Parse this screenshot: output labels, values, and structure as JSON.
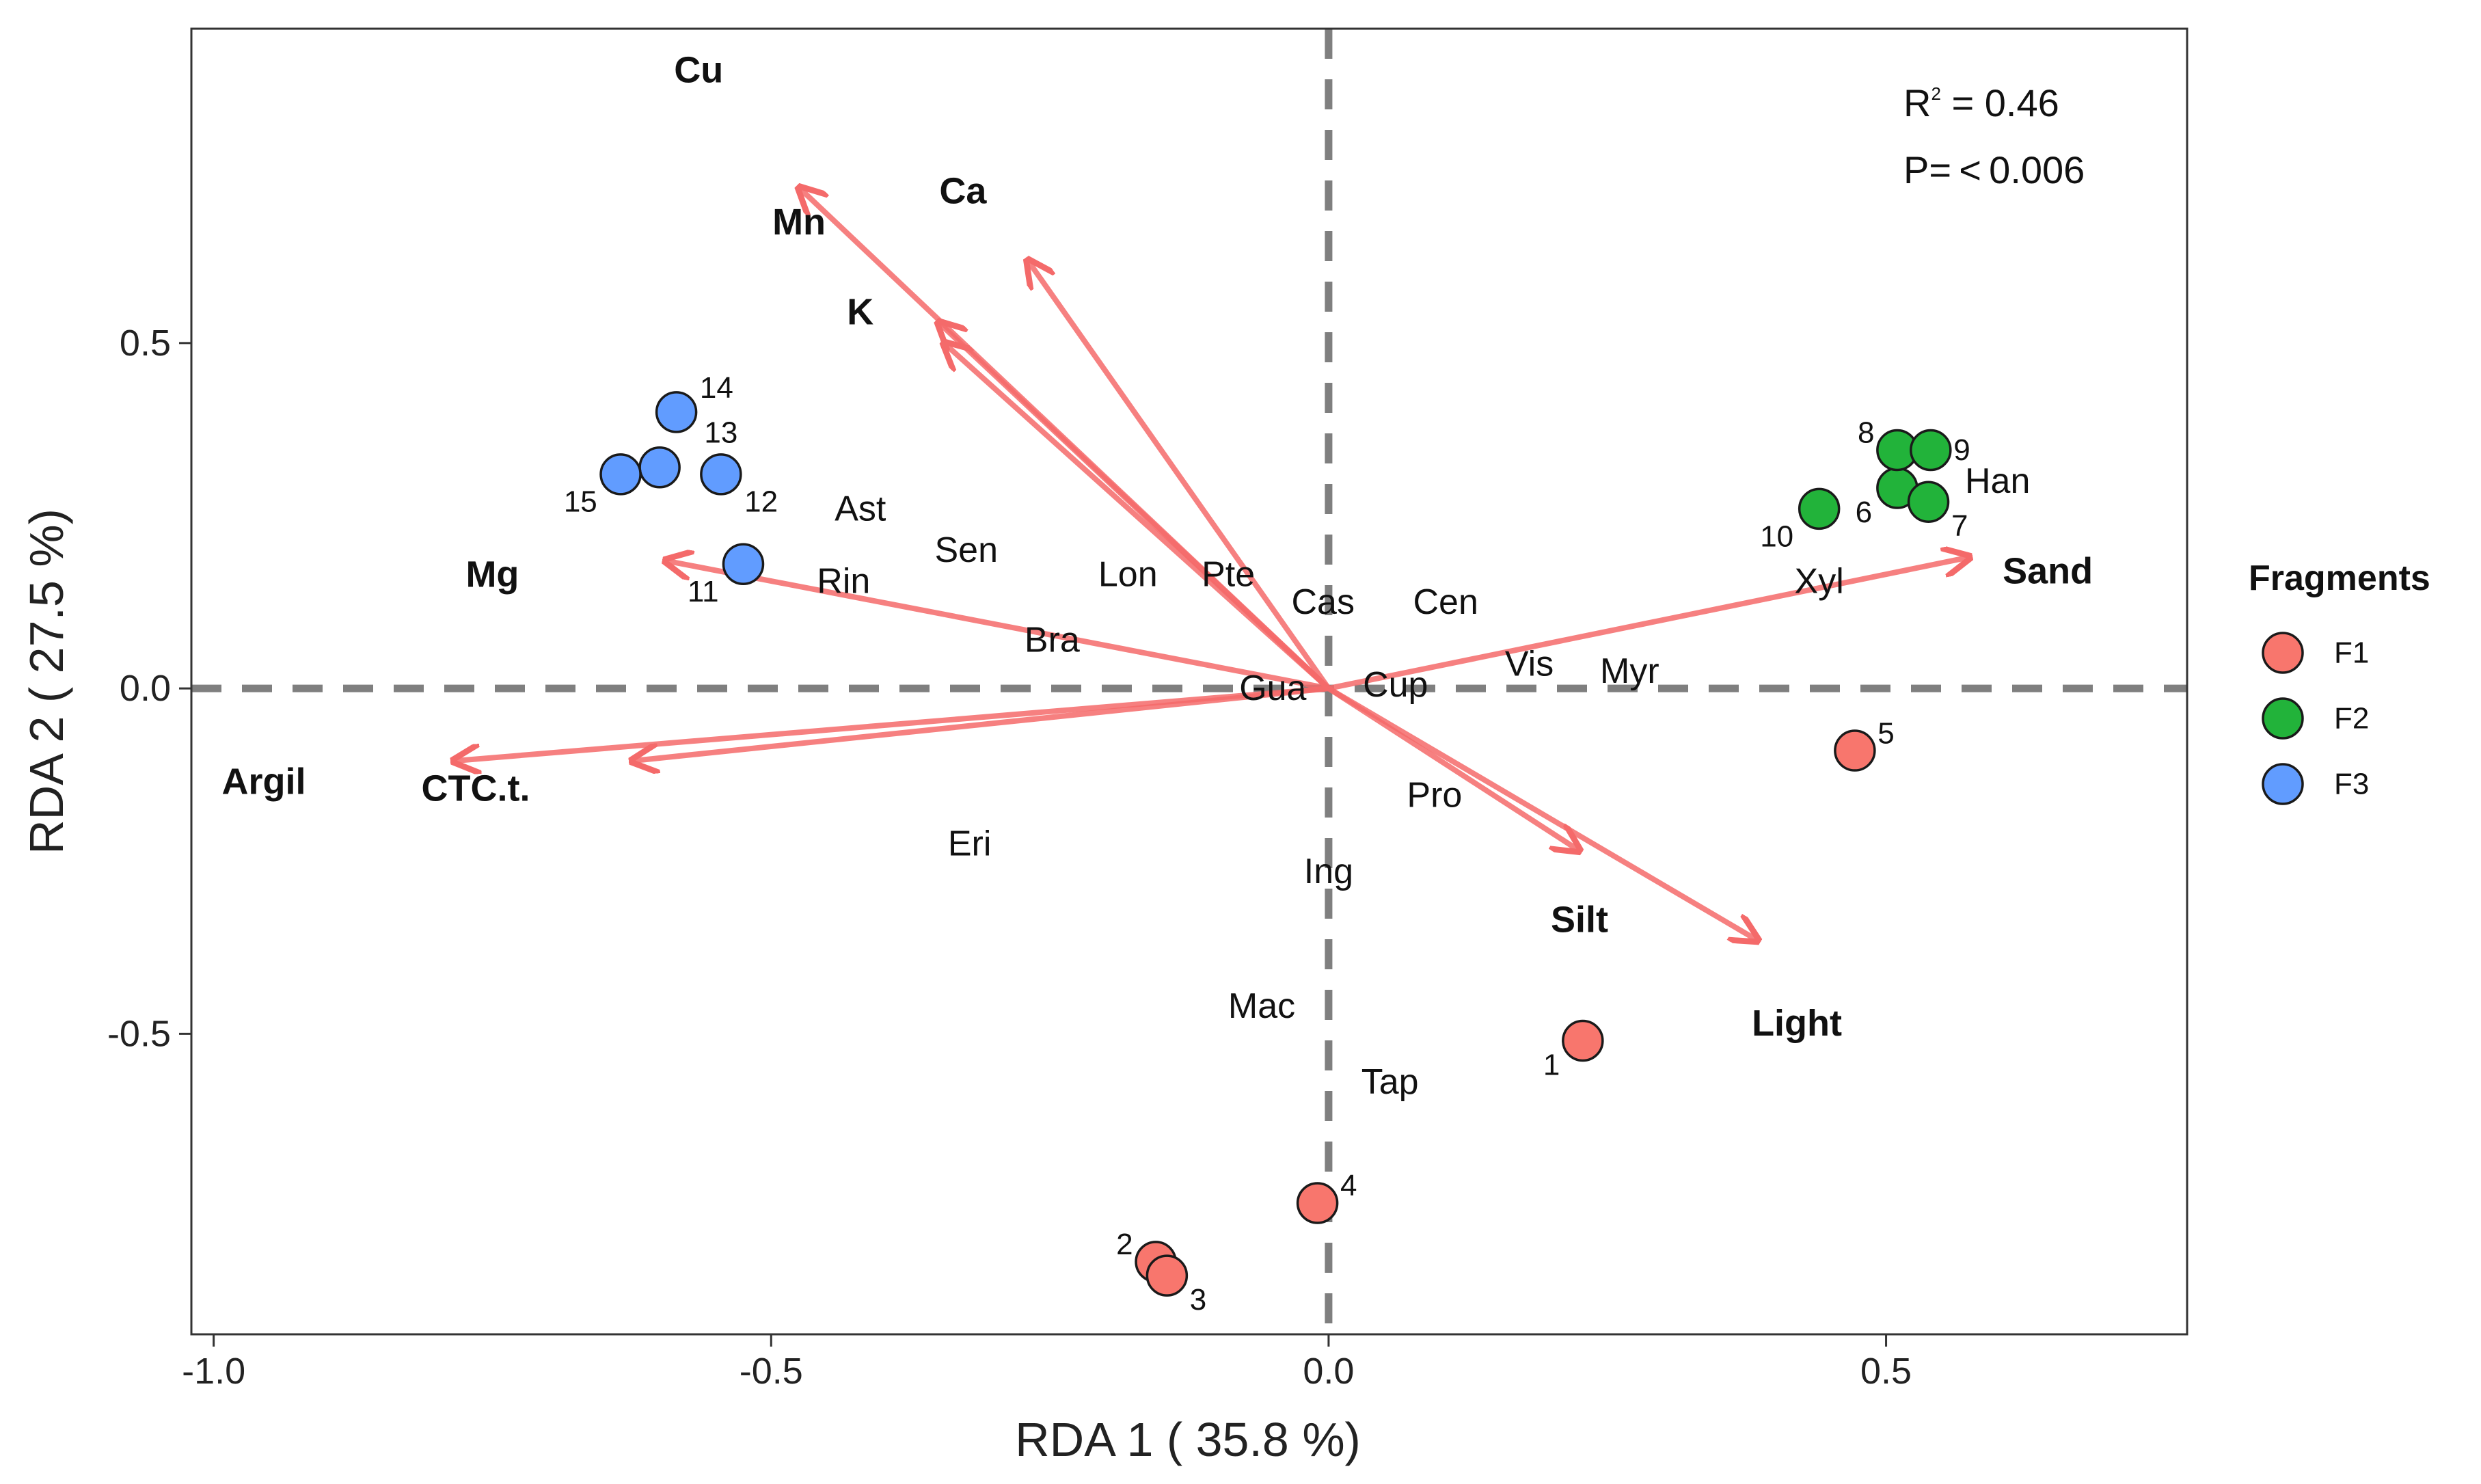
{
  "chart_data": {
    "type": "scatter",
    "subtype": "RDA biplot",
    "xlabel": "RDA 1 ( 35.8 %)",
    "ylabel": "RDA 2 ( 27.5 %)",
    "xlim": [
      -1.02,
      0.77
    ],
    "ylim": [
      -0.935,
      0.955
    ],
    "x_ticks": [
      {
        "value": -1.0,
        "label": "-1.0"
      },
      {
        "value": -0.5,
        "label": "-0.5"
      },
      {
        "value": 0.0,
        "label": "0.0"
      },
      {
        "value": 0.5,
        "label": "0.5"
      }
    ],
    "y_ticks": [
      {
        "value": -0.5,
        "label": "-0.5"
      },
      {
        "value": 0.0,
        "label": "0.0"
      },
      {
        "value": 0.5,
        "label": "0.5"
      }
    ],
    "grid": false,
    "reference_lines": {
      "x": 0.0,
      "y": 0.0,
      "style": "dashed"
    },
    "stats": {
      "r2_prefix": "R",
      "r2_sup": "2",
      "r2_value": " = 0.46",
      "p": "P= < 0.006"
    },
    "legend": {
      "title": "Fragments",
      "placement": "right",
      "entries": [
        {
          "name": "F1",
          "color": "#f8766d"
        },
        {
          "name": "F2",
          "color": "#22b33a"
        },
        {
          "name": "F3",
          "color": "#619cff"
        }
      ]
    },
    "env_arrows": [
      {
        "name": "Cu",
        "x": -0.475,
        "y": 0.725,
        "label_x": -0.565,
        "label_y": 0.895
      },
      {
        "name": "Ca",
        "x": -0.27,
        "y": 0.62,
        "label_x": -0.328,
        "label_y": 0.72
      },
      {
        "name": "Mn",
        "x": -0.35,
        "y": 0.53,
        "label_x": -0.475,
        "label_y": 0.675
      },
      {
        "name": "K",
        "x": -0.345,
        "y": 0.5,
        "label_x": -0.42,
        "label_y": 0.545
      },
      {
        "name": "Mg",
        "x": -0.595,
        "y": 0.185,
        "label_x": -0.75,
        "label_y": 0.165
      },
      {
        "name": "Argil",
        "x": -0.785,
        "y": -0.105,
        "label_x": -0.955,
        "label_y": -0.135
      },
      {
        "name": "CTC.t.",
        "x": -0.625,
        "y": -0.105,
        "label_x": -0.765,
        "label_y": -0.145
      },
      {
        "name": "Sand",
        "x": 0.575,
        "y": 0.19,
        "label_x": 0.645,
        "label_y": 0.17
      },
      {
        "name": "Silt",
        "x": 0.225,
        "y": -0.235,
        "label_x": 0.225,
        "label_y": -0.335
      },
      {
        "name": "Light",
        "x": 0.385,
        "y": -0.365,
        "label_x": 0.42,
        "label_y": -0.485
      }
    ],
    "species": [
      {
        "name": "Ast",
        "x": -0.42,
        "y": 0.26
      },
      {
        "name": "Sen",
        "x": -0.325,
        "y": 0.2
      },
      {
        "name": "Lon",
        "x": -0.18,
        "y": 0.165
      },
      {
        "name": "Pte",
        "x": -0.09,
        "y": 0.165
      },
      {
        "name": "Rin",
        "x": -0.435,
        "y": 0.155
      },
      {
        "name": "Cas",
        "x": -0.005,
        "y": 0.125
      },
      {
        "name": "Cen",
        "x": 0.105,
        "y": 0.125
      },
      {
        "name": "Bra",
        "x": -0.248,
        "y": 0.07
      },
      {
        "name": "Vis",
        "x": 0.18,
        "y": 0.035
      },
      {
        "name": "Myr",
        "x": 0.27,
        "y": 0.025
      },
      {
        "name": "Gua",
        "x": -0.05,
        "y": 0.0
      },
      {
        "name": "Cup",
        "x": 0.06,
        "y": 0.005
      },
      {
        "name": "Pro",
        "x": 0.095,
        "y": -0.155
      },
      {
        "name": "Eri",
        "x": -0.322,
        "y": -0.225
      },
      {
        "name": "Ing",
        "x": 0.0,
        "y": -0.265
      },
      {
        "name": "Mac",
        "x": -0.06,
        "y": -0.46
      },
      {
        "name": "Tap",
        "x": 0.055,
        "y": -0.57
      },
      {
        "name": "Xyl",
        "x": 0.44,
        "y": 0.155
      },
      {
        "name": "Han",
        "x": 0.6,
        "y": 0.3
      }
    ],
    "sites": [
      {
        "id": "1",
        "group": "F1",
        "x": 0.228,
        "y": -0.51,
        "label_dx": -0.028,
        "label_dy": -0.035
      },
      {
        "id": "2",
        "group": "F1",
        "x": -0.155,
        "y": -0.83,
        "label_dx": -0.028,
        "label_dy": 0.025
      },
      {
        "id": "3",
        "group": "F1",
        "x": -0.145,
        "y": -0.85,
        "label_dx": 0.028,
        "label_dy": -0.035
      },
      {
        "id": "4",
        "group": "F1",
        "x": -0.01,
        "y": -0.745,
        "label_dx": 0.028,
        "label_dy": 0.025
      },
      {
        "id": "5",
        "group": "F1",
        "x": 0.472,
        "y": -0.09,
        "label_dx": 0.028,
        "label_dy": 0.025
      },
      {
        "id": "6",
        "group": "F2",
        "x": 0.51,
        "y": 0.29,
        "label_dx": -0.03,
        "label_dy": -0.035
      },
      {
        "id": "7",
        "group": "F2",
        "x": 0.538,
        "y": 0.27,
        "label_dx": 0.028,
        "label_dy": -0.035
      },
      {
        "id": "8",
        "group": "F2",
        "x": 0.51,
        "y": 0.345,
        "label_dx": -0.028,
        "label_dy": 0.025
      },
      {
        "id": "9",
        "group": "F2",
        "x": 0.54,
        "y": 0.345,
        "label_dx": 0.028,
        "label_dy": 0.0
      },
      {
        "id": "10",
        "group": "F2",
        "x": 0.44,
        "y": 0.26,
        "label_dx": -0.038,
        "label_dy": -0.04
      },
      {
        "id": "11",
        "group": "F3",
        "x": -0.525,
        "y": 0.18,
        "label_dx": -0.036,
        "label_dy": -0.04
      },
      {
        "id": "12",
        "group": "F3",
        "x": -0.545,
        "y": 0.31,
        "label_dx": 0.036,
        "label_dy": -0.04
      },
      {
        "id": "13",
        "group": "F3",
        "x": -0.6,
        "y": 0.32,
        "label_dx": 0.055,
        "label_dy": 0.05
      },
      {
        "id": "14",
        "group": "F3",
        "x": -0.585,
        "y": 0.4,
        "label_dx": 0.036,
        "label_dy": 0.035
      },
      {
        "id": "15",
        "group": "F3",
        "x": -0.635,
        "y": 0.31,
        "label_dx": -0.036,
        "label_dy": -0.04
      }
    ],
    "colors": {
      "arrow": "#f46a6a",
      "reference_line": "#7f7f7f",
      "panel_border": "#333333"
    }
  }
}
